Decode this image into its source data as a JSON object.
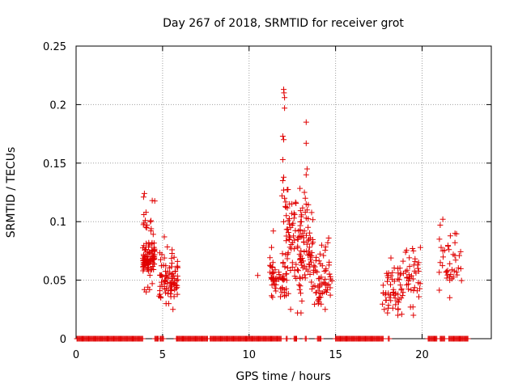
{
  "chart_data": {
    "type": "scatter",
    "title": "Day 267 of 2018, SRMTID for receiver grot",
    "xlabel": "GPS time / hours",
    "ylabel": "SRMTID / TECUs",
    "xlim": [
      0,
      24
    ],
    "ylim": [
      0,
      0.25
    ],
    "x_ticks": [
      0,
      5,
      10,
      15,
      20
    ],
    "x_tick_labels": [
      "0",
      "5",
      "10",
      "15",
      "20"
    ],
    "y_ticks": [
      0,
      0.05,
      0.1,
      0.15,
      0.2,
      0.25
    ],
    "y_tick_labels": [
      "0",
      "0.05",
      "0.1",
      "0.15",
      "0.2",
      "0.25"
    ],
    "grid": true,
    "marker": "+",
    "color": "#e00000",
    "zero_segments": [
      [
        0.05,
        3.85
      ],
      [
        4.55,
        4.75
      ],
      [
        4.85,
        5.05
      ],
      [
        5.8,
        7.6
      ],
      [
        7.75,
        11.85
      ],
      [
        12.15,
        12.2
      ],
      [
        12.6,
        12.75
      ],
      [
        13.25,
        13.3
      ],
      [
        13.95,
        14.15
      ],
      [
        15.0,
        17.75
      ],
      [
        18.05,
        18.1
      ],
      [
        20.35,
        20.85
      ],
      [
        21.05,
        21.3
      ],
      [
        21.55,
        22.65
      ]
    ],
    "clusters": [
      {
        "x": [
          3.85,
          4.55
        ],
        "y": [
          0.055,
          0.08
        ],
        "n": 70
      },
      {
        "x": [
          3.85,
          4.55
        ],
        "y": [
          0.038,
          0.125
        ],
        "n": 30
      },
      {
        "x": [
          4.8,
          5.9
        ],
        "y": [
          0.03,
          0.07
        ],
        "n": 60
      },
      {
        "x": [
          4.8,
          5.9
        ],
        "y": [
          0.025,
          0.088
        ],
        "n": 20
      },
      {
        "x": [
          11.2,
          12.2
        ],
        "y": [
          0.03,
          0.075
        ],
        "n": 60
      },
      {
        "x": [
          12.1,
          13.0
        ],
        "y": [
          0.025,
          0.14
        ],
        "n": 70
      },
      {
        "x": [
          12.9,
          13.7
        ],
        "y": [
          0.025,
          0.12
        ],
        "n": 60
      },
      {
        "x": [
          13.7,
          14.8
        ],
        "y": [
          0.025,
          0.085
        ],
        "n": 60
      },
      {
        "x": [
          17.7,
          19.0
        ],
        "y": [
          0.02,
          0.068
        ],
        "n": 55
      },
      {
        "x": [
          19.0,
          19.9
        ],
        "y": [
          0.025,
          0.08
        ],
        "n": 35
      },
      {
        "x": [
          20.8,
          22.3
        ],
        "y": [
          0.035,
          0.102
        ],
        "n": 30
      }
    ],
    "points": [
      [
        3.95,
        0.124
      ],
      [
        3.9,
        0.121
      ],
      [
        3.92,
        0.106
      ],
      [
        4.0,
        0.101
      ],
      [
        4.1,
        0.097
      ],
      [
        4.4,
        0.118
      ],
      [
        4.3,
        0.1
      ],
      [
        4.2,
        0.082
      ],
      [
        3.95,
        0.042
      ],
      [
        4.05,
        0.04
      ],
      [
        4.25,
        0.042
      ],
      [
        4.15,
        0.044
      ],
      [
        4.4,
        0.047
      ],
      [
        5.1,
        0.087
      ],
      [
        5.55,
        0.076
      ],
      [
        5.6,
        0.025
      ],
      [
        5.35,
        0.03
      ],
      [
        4.9,
        0.035
      ],
      [
        5.2,
        0.03
      ],
      [
        10.5,
        0.054
      ],
      [
        12.0,
        0.213
      ],
      [
        12.02,
        0.21
      ],
      [
        12.05,
        0.206
      ],
      [
        12.05,
        0.197
      ],
      [
        11.95,
        0.173
      ],
      [
        12.0,
        0.17
      ],
      [
        11.95,
        0.153
      ],
      [
        12.0,
        0.138
      ],
      [
        11.95,
        0.135
      ],
      [
        12.0,
        0.127
      ],
      [
        11.9,
        0.122
      ],
      [
        12.05,
        0.12
      ],
      [
        12.1,
        0.113
      ],
      [
        12.0,
        0.1
      ],
      [
        13.3,
        0.185
      ],
      [
        13.3,
        0.167
      ],
      [
        13.35,
        0.145
      ],
      [
        13.3,
        0.14
      ],
      [
        13.2,
        0.125
      ],
      [
        13.25,
        0.12
      ],
      [
        13.3,
        0.115
      ],
      [
        13.35,
        0.11
      ],
      [
        13.25,
        0.108
      ],
      [
        13.3,
        0.103
      ],
      [
        12.5,
        0.097
      ],
      [
        12.6,
        0.103
      ],
      [
        13.1,
        0.09
      ],
      [
        13.2,
        0.092
      ],
      [
        11.4,
        0.092
      ],
      [
        11.3,
        0.078
      ],
      [
        12.8,
        0.022
      ],
      [
        13.0,
        0.022
      ],
      [
        12.4,
        0.025
      ],
      [
        14.6,
        0.086
      ],
      [
        14.55,
        0.082
      ],
      [
        14.2,
        0.08
      ],
      [
        14.0,
        0.03
      ],
      [
        14.4,
        0.025
      ],
      [
        18.2,
        0.069
      ],
      [
        18.6,
        0.06
      ],
      [
        18.0,
        0.022
      ],
      [
        18.6,
        0.02
      ],
      [
        19.5,
        0.02
      ],
      [
        19.45,
        0.077
      ],
      [
        19.5,
        0.075
      ],
      [
        19.9,
        0.078
      ],
      [
        19.8,
        0.065
      ],
      [
        21.2,
        0.102
      ],
      [
        21.05,
        0.097
      ],
      [
        21.9,
        0.09
      ],
      [
        21.0,
        0.085
      ],
      [
        21.9,
        0.082
      ],
      [
        21.8,
        0.072
      ],
      [
        21.1,
        0.078
      ],
      [
        21.2,
        0.075
      ],
      [
        21.6,
        0.064
      ],
      [
        21.65,
        0.055
      ],
      [
        21.6,
        0.05
      ],
      [
        21.6,
        0.035
      ]
    ]
  }
}
